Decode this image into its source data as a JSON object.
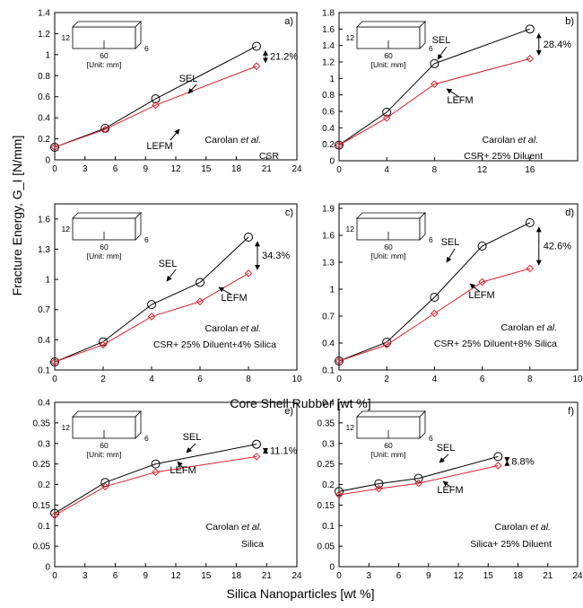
{
  "figure": {
    "xlabel_top": "Core Shell Rubber [wt %]",
    "xlabel_bottom": "Silica Nanoparticles [wt %]",
    "ylabel": "Fracture Energy, G_I [N/mm]",
    "specimen": {
      "dim_length": "60",
      "dim_height": "12",
      "dim_depth": "6",
      "unit_text": "[Unit: mm]"
    },
    "label_sel": "SEL",
    "label_lefm": "LEFM",
    "source": "Carolan et al.",
    "colors": {
      "sel": "#000000",
      "lefm": "#e0202a"
    }
  },
  "chart_data": [
    {
      "type": "line",
      "panel": "a)",
      "condition": "CSR",
      "diff": "21.2%",
      "x": [
        0,
        5,
        10,
        20
      ],
      "series": [
        {
          "name": "SEL",
          "values": [
            0.12,
            0.3,
            0.58,
            1.08
          ]
        },
        {
          "name": "LEFM",
          "values": [
            0.12,
            0.29,
            0.52,
            0.89
          ]
        }
      ],
      "xlim": [
        0,
        24
      ],
      "xticks": [
        0,
        3,
        6,
        9,
        12,
        15,
        18,
        21,
        24
      ],
      "ylim": [
        0,
        1.4
      ],
      "yticks": [
        0,
        0.2,
        0.4,
        0.6,
        0.8,
        1,
        1.2,
        1.4
      ],
      "ytick_labels": [
        "0",
        "0.2",
        "0.4",
        "0.6",
        "0.8",
        "1",
        "1.2",
        "1.4"
      ]
    },
    {
      "type": "line",
      "panel": "b)",
      "condition": "CSR+ 25% Diluent",
      "diff": "28.4%",
      "x": [
        0,
        4,
        8,
        16
      ],
      "series": [
        {
          "name": "SEL",
          "values": [
            0.19,
            0.59,
            1.18,
            1.6
          ]
        },
        {
          "name": "LEFM",
          "values": [
            0.19,
            0.52,
            0.93,
            1.24
          ]
        }
      ],
      "xlim": [
        0,
        20
      ],
      "xticks": [
        0,
        4,
        8,
        12,
        16,
        20
      ],
      "ytick_x": "",
      "ylim": [
        0,
        1.8
      ],
      "yticks": [
        0,
        0.2,
        0.4,
        0.6,
        0.8,
        1,
        1.2,
        1.4,
        1.6,
        1.8
      ],
      "ytick_labels": [
        "0",
        "0.2",
        "0.4",
        "0.6",
        "0.8",
        "1",
        "1.2",
        "1.4",
        "1.6",
        "1.8"
      ],
      "xtick_labels": [
        "0",
        "4",
        "8",
        "12",
        "16",
        ""
      ]
    },
    {
      "type": "line",
      "panel": "c)",
      "condition": "CSR+ 25% Diluent+4% Silica",
      "diff": "34.3%",
      "x": [
        0,
        2,
        4,
        6,
        8
      ],
      "series": [
        {
          "name": "SEL",
          "values": [
            0.18,
            0.38,
            0.75,
            0.97,
            1.42
          ]
        },
        {
          "name": "LEFM",
          "values": [
            0.18,
            0.35,
            0.63,
            0.78,
            1.06
          ]
        }
      ],
      "xlim": [
        0,
        10
      ],
      "xticks": [
        0,
        2,
        4,
        6,
        8,
        10
      ],
      "ylim": [
        0.1,
        1.75
      ],
      "yticks": [
        0.1,
        0.4,
        0.7,
        1,
        1.3,
        1.6
      ],
      "ytick_labels": [
        "0.1",
        "0.4",
        "0.7",
        "1",
        "1.3",
        "1.6"
      ]
    },
    {
      "type": "line",
      "panel": "d)",
      "condition": "CSR+ 25% Diluent+8% Silica",
      "diff": "42.6%",
      "x": [
        0,
        2,
        4,
        6,
        8
      ],
      "series": [
        {
          "name": "SEL",
          "values": [
            0.2,
            0.41,
            0.91,
            1.48,
            1.74
          ]
        },
        {
          "name": "LEFM",
          "values": [
            0.2,
            0.38,
            0.73,
            1.08,
            1.23
          ]
        }
      ],
      "xlim": [
        0,
        10
      ],
      "xticks": [
        0,
        2,
        4,
        6,
        8,
        10
      ],
      "ylim": [
        0.1,
        1.95
      ],
      "yticks": [
        0.1,
        0.4,
        0.7,
        1,
        1.3,
        1.6,
        1.9
      ],
      "ytick_labels": [
        "0.1",
        "0.4",
        "0.7",
        "1",
        "1.3",
        "1.6",
        "1.9"
      ]
    },
    {
      "type": "line",
      "panel": "e)",
      "condition": "Silica",
      "diff": "11.1%",
      "x": [
        0,
        5,
        10,
        20
      ],
      "series": [
        {
          "name": "SEL",
          "values": [
            0.13,
            0.205,
            0.25,
            0.298
          ]
        },
        {
          "name": "LEFM",
          "values": [
            0.125,
            0.195,
            0.23,
            0.268
          ]
        }
      ],
      "xlim": [
        0,
        24
      ],
      "xticks": [
        0,
        3,
        6,
        9,
        12,
        15,
        18,
        21,
        24
      ],
      "ylim": [
        0,
        0.4
      ],
      "yticks": [
        0,
        0.05,
        0.1,
        0.15,
        0.2,
        0.25,
        0.3,
        0.35,
        0.4
      ],
      "ytick_labels": [
        "0",
        "0.05",
        "0.1",
        "0.15",
        "0.2",
        "0.25",
        "0.3",
        "0.35",
        "0.4"
      ]
    },
    {
      "type": "line",
      "panel": "f)",
      "condition": "Silica+ 25% Diluent",
      "diff": "8.8%",
      "x": [
        0,
        4,
        8,
        16
      ],
      "series": [
        {
          "name": "SEL",
          "values": [
            0.183,
            0.202,
            0.215,
            0.268
          ]
        },
        {
          "name": "LEFM",
          "values": [
            0.175,
            0.19,
            0.203,
            0.246
          ]
        }
      ],
      "xlim": [
        0,
        24
      ],
      "xticks": [
        0,
        3,
        6,
        9,
        12,
        15,
        18,
        21,
        24
      ],
      "ylim": [
        0,
        0.4
      ],
      "yticks": [
        0,
        0.05,
        0.1,
        0.15,
        0.2,
        0.25,
        0.3,
        0.35,
        0.4
      ],
      "ytick_labels": [
        "0",
        "0.05",
        "0.1",
        "0.15",
        "0.2",
        "0.25",
        "0.3",
        "0.35",
        "0.4"
      ]
    }
  ]
}
